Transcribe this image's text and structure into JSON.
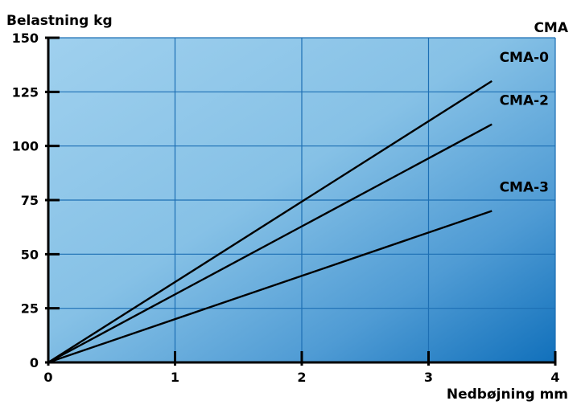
{
  "chart_data": {
    "type": "line",
    "title": "CMA",
    "xlabel": "Nedbøjning mm",
    "ylabel": "Belastning kg",
    "xlim": [
      0,
      4
    ],
    "ylim": [
      0,
      150
    ],
    "x_ticks": [
      0,
      1,
      2,
      3,
      4
    ],
    "y_ticks": [
      0,
      25,
      50,
      75,
      100,
      125,
      150
    ],
    "grid": true,
    "series": [
      {
        "name": "CMA-0",
        "x": [
          0,
          3.5
        ],
        "y": [
          0,
          130
        ]
      },
      {
        "name": "CMA-2",
        "x": [
          0,
          3.5
        ],
        "y": [
          0,
          110
        ]
      },
      {
        "name": "CMA-3",
        "x": [
          0,
          3.5
        ],
        "y": [
          0,
          70
        ]
      }
    ],
    "colors": {
      "background_light": "#9ccdec",
      "background_dark": "#1273bd",
      "grid": "#1d6fb4",
      "lines": "#000000"
    }
  }
}
